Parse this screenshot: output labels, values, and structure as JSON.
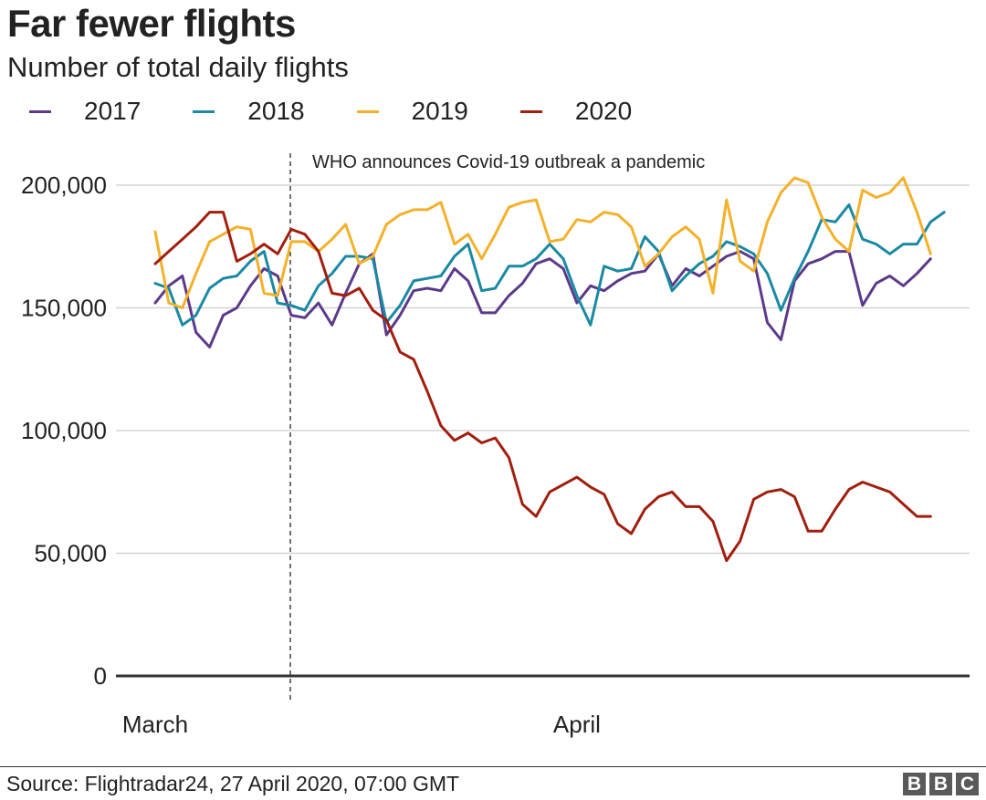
{
  "header": {
    "title": "Far fewer flights",
    "subtitle": "Number of total daily flights"
  },
  "footer": {
    "source": "Source: Flightradar24, 27 April 2020, 07:00 GMT",
    "logo_letters": [
      "B",
      "B",
      "C"
    ]
  },
  "chart_data": {
    "type": "line",
    "title": "Far fewer flights",
    "subtitle": "Number of total daily flights",
    "x_start_date": "1 March",
    "x_tick_labels": [
      "March",
      "April"
    ],
    "x_tick_days": [
      1,
      32
    ],
    "y_ticks": [
      0,
      50000,
      100000,
      150000,
      200000
    ],
    "y_tick_labels": [
      "0",
      "50,000",
      "100,000",
      "150,000",
      "200,000"
    ],
    "ylim": [
      0,
      210000
    ],
    "grid": true,
    "legend_position": "top-left",
    "annotation": {
      "label": "WHO announces Covid-19 outbreak a pandemic",
      "day": 11
    },
    "series": [
      {
        "name": "2017",
        "color": "#5c3a89",
        "values": [
          152000,
          159000,
          163000,
          140000,
          134000,
          147000,
          150000,
          159000,
          166000,
          163000,
          147000,
          146000,
          152000,
          143000,
          156000,
          168000,
          172000,
          139000,
          147000,
          157000,
          158000,
          157000,
          166000,
          161000,
          148000,
          148000,
          155000,
          160000,
          168000,
          170000,
          166000,
          152000,
          159000,
          157000,
          161000,
          164000,
          165000,
          172000,
          159000,
          166000,
          163000,
          167000,
          171000,
          173000,
          170000,
          144000,
          137000,
          161000,
          168000,
          170000,
          173000,
          173000,
          151000,
          160000,
          163000,
          159000,
          164000,
          170000
        ]
      },
      {
        "name": "2018",
        "color": "#1a8aa3",
        "values": [
          160000,
          158000,
          143000,
          147000,
          158000,
          162000,
          163000,
          169000,
          173000,
          152000,
          151000,
          149000,
          159000,
          164000,
          171000,
          171000,
          170000,
          144000,
          151000,
          161000,
          162000,
          163000,
          171000,
          176000,
          157000,
          158000,
          167000,
          167000,
          170000,
          176000,
          170000,
          155000,
          143000,
          167000,
          165000,
          166000,
          179000,
          173000,
          157000,
          163000,
          168000,
          171000,
          177000,
          175000,
          172000,
          164000,
          149000,
          162000,
          173000,
          186000,
          185000,
          192000,
          178000,
          176000,
          172000,
          176000,
          176000,
          185000,
          189000
        ]
      },
      {
        "name": "2019",
        "color": "#f4b12a",
        "values": [
          181000,
          152000,
          150000,
          164000,
          177000,
          180000,
          183000,
          182000,
          156000,
          155000,
          177000,
          177000,
          173000,
          178000,
          184000,
          168000,
          171000,
          184000,
          188000,
          190000,
          190000,
          193000,
          176000,
          180000,
          170000,
          180000,
          191000,
          193000,
          194000,
          177000,
          178000,
          186000,
          185000,
          189000,
          188000,
          183000,
          167000,
          172000,
          179000,
          183000,
          178000,
          156000,
          194000,
          169000,
          165000,
          185000,
          197000,
          203000,
          201000,
          187000,
          178000,
          173000,
          198000,
          195000,
          197000,
          203000,
          189000,
          172000
        ]
      },
      {
        "name": "2020",
        "color": "#a11f0f",
        "values": [
          168000,
          173000,
          178000,
          183000,
          189000,
          189000,
          169000,
          172000,
          176000,
          172000,
          182000,
          180000,
          173000,
          156000,
          155000,
          158000,
          149000,
          145000,
          132000,
          129000,
          116000,
          102000,
          96000,
          99000,
          95000,
          97000,
          89000,
          70000,
          65000,
          75000,
          78000,
          81000,
          77000,
          74000,
          62000,
          58000,
          68000,
          73000,
          75000,
          69000,
          69000,
          63000,
          47000,
          55000,
          72000,
          75000,
          76000,
          73000,
          59000,
          59000,
          68000,
          76000,
          79000,
          77000,
          75000,
          70000,
          65000,
          65000
        ]
      }
    ]
  }
}
